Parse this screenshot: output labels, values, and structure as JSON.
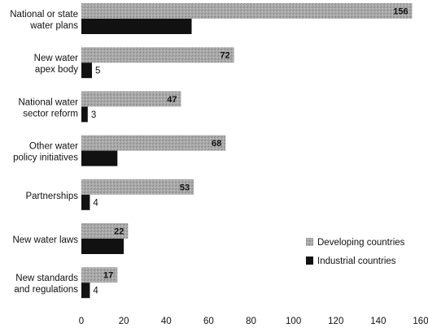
{
  "chart_data": {
    "type": "bar",
    "orientation": "horizontal",
    "categories": [
      [
        "National or state",
        "water plans"
      ],
      [
        "New water",
        "apex body"
      ],
      [
        "National water",
        "sector reform"
      ],
      [
        "Other water",
        "policy initiatives"
      ],
      [
        "Partnerships"
      ],
      [
        "New water laws"
      ],
      [
        "New standards",
        "and regulations"
      ]
    ],
    "series": [
      {
        "name": "Developing countries",
        "values": [
          156,
          72,
          47,
          68,
          53,
          22,
          17
        ],
        "value_labels": [
          "156",
          "72",
          "47",
          "68",
          "53",
          "22",
          "17"
        ],
        "color": "#a8a8a8"
      },
      {
        "name": "Industrial countries",
        "values": [
          52,
          5,
          3,
          17,
          4,
          20,
          4
        ],
        "value_labels": [
          "",
          "5",
          "3",
          "",
          "4",
          "",
          "4"
        ],
        "color": "#111111"
      }
    ],
    "xlim": [
      0,
      160
    ],
    "xticks": [
      "0",
      "20",
      "40",
      "60",
      "80",
      "100",
      "120",
      "140",
      "160"
    ],
    "grid": false,
    "legend_position": "bottom-right"
  }
}
